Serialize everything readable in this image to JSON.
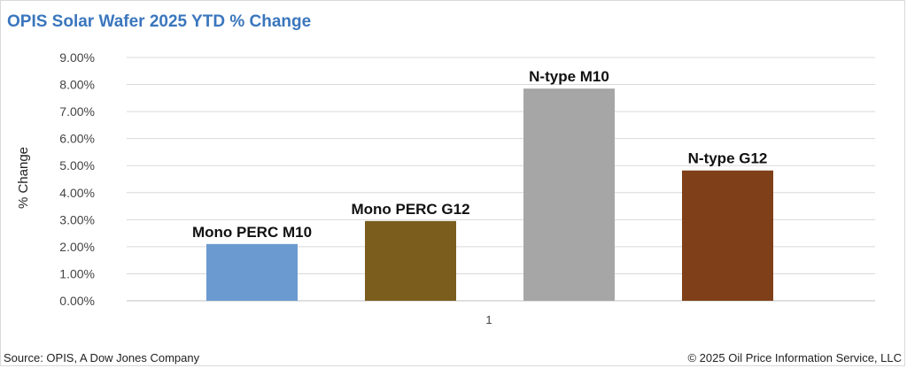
{
  "title": "OPIS Solar Wafer 2025 YTD % Change",
  "footer": {
    "source": "Source: OPIS, A Dow Jones Company",
    "copyright": "© 2025 Oil Price Information Service, LLC"
  },
  "chart_data": {
    "type": "bar",
    "title": "OPIS Solar Wafer 2025 YTD % Change",
    "xlabel": "",
    "ylabel": "% Change",
    "categories": [
      "1"
    ],
    "ylim": [
      0,
      9
    ],
    "yticks": [
      "0.00%",
      "1.00%",
      "2.00%",
      "3.00%",
      "4.00%",
      "5.00%",
      "6.00%",
      "7.00%",
      "8.00%",
      "9.00%"
    ],
    "grid": true,
    "legend": "none",
    "series": [
      {
        "name": "Mono PERC M10",
        "values": [
          2.1
        ],
        "color": "#6a9ad0"
      },
      {
        "name": "Mono PERC G12",
        "values": [
          2.95
        ],
        "color": "#7b5e1e"
      },
      {
        "name": "N-type M10",
        "values": [
          7.85
        ],
        "color": "#a6a6a6"
      },
      {
        "name": "N-type G12",
        "values": [
          4.82
        ],
        "color": "#7f3f18"
      }
    ]
  }
}
